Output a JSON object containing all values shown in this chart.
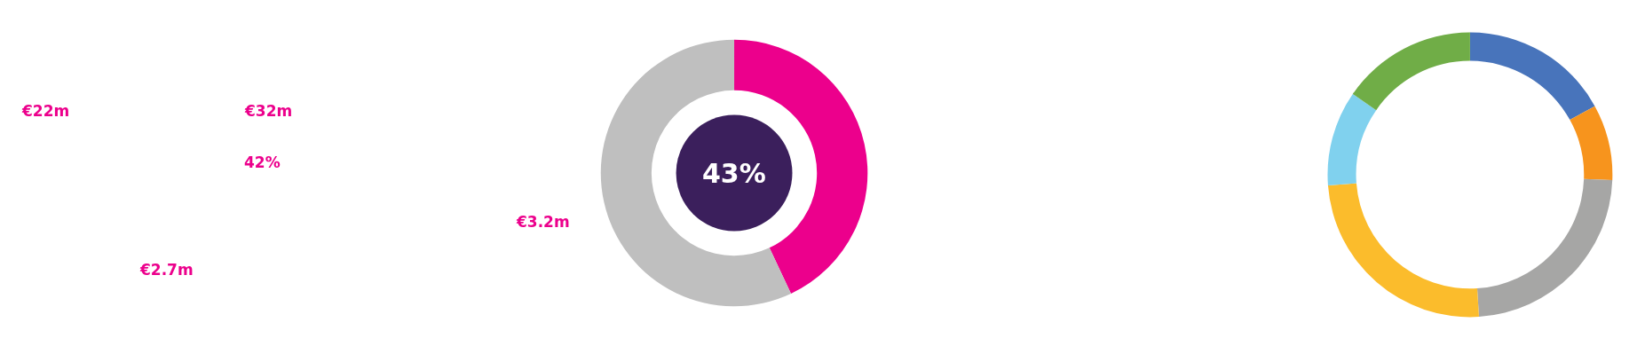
{
  "chart_data": [
    {
      "type": "donut",
      "categories": [
        null,
        null
      ],
      "values": [
        43,
        57
      ],
      "colors": [
        "#ec008c",
        "#bfbfbf"
      ],
      "annotations": [
        "43%",
        "€22m",
        "€32m",
        "42%",
        "€2.7m",
        "€3.2m"
      ]
    },
    {
      "type": "donut",
      "categories": [
        null,
        null,
        null,
        null,
        null,
        null
      ],
      "values": [
        17,
        8.6,
        23.4,
        24.8,
        10.8,
        15.4
      ],
      "colors": [
        "#4874bb",
        "#f7941d",
        "#a6a6a5",
        "#fbbc2c",
        "#80d1ee",
        "#70ad47"
      ]
    }
  ]
}
